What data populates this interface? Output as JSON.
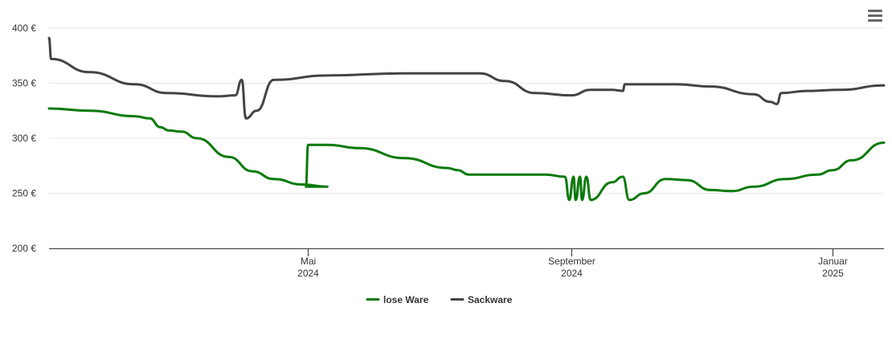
{
  "chart_data": {
    "type": "line",
    "title": "",
    "xlabel": "",
    "ylabel": "",
    "ylim": [
      200,
      400
    ],
    "xlim": [
      "2024-01-01",
      "2025-01-25"
    ],
    "y_ticks": [
      {
        "value": 200,
        "label": "200 €"
      },
      {
        "value": 250,
        "label": "250 €"
      },
      {
        "value": 300,
        "label": "300 €"
      },
      {
        "value": 350,
        "label": "350 €"
      },
      {
        "value": 400,
        "label": "400 €"
      }
    ],
    "x_ticks": [
      {
        "date": "2024-05-01",
        "month": "Mai",
        "year": "2024"
      },
      {
        "date": "2024-09-01",
        "month": "September",
        "year": "2024"
      },
      {
        "date": "2025-01-01",
        "month": "Januar",
        "year": "2025"
      }
    ],
    "grid": true,
    "legend_position": "bottom-center",
    "series": [
      {
        "name": "lose Ware",
        "color": "#0a7a0a",
        "points": [
          [
            "2024-01-01",
            327
          ],
          [
            "2024-01-20",
            325
          ],
          [
            "2024-02-10",
            320
          ],
          [
            "2024-02-17",
            318
          ],
          [
            "2024-02-22",
            310
          ],
          [
            "2024-02-26",
            307
          ],
          [
            "2024-03-03",
            306
          ],
          [
            "2024-03-10",
            300
          ],
          [
            "2024-03-25",
            283
          ],
          [
            "2024-04-05",
            270
          ],
          [
            "2024-04-15",
            263
          ],
          [
            "2024-04-28",
            258
          ],
          [
            "2024-05-10",
            256
          ],
          [
            "2024-04-30",
            256
          ],
          [
            "2024-05-01",
            294
          ],
          [
            "2024-05-10",
            294
          ],
          [
            "2024-05-25",
            291
          ],
          [
            "2024-06-15",
            282
          ],
          [
            "2024-07-05",
            273
          ],
          [
            "2024-07-10",
            271
          ],
          [
            "2024-07-15",
            267
          ],
          [
            "2024-08-01",
            267
          ],
          [
            "2024-08-20",
            267
          ],
          [
            "2024-08-29",
            265
          ],
          [
            "2024-08-31",
            244
          ],
          [
            "2024-09-02",
            265
          ],
          [
            "2024-09-03",
            244
          ],
          [
            "2024-09-05",
            265
          ],
          [
            "2024-09-06",
            244
          ],
          [
            "2024-09-08",
            265
          ],
          [
            "2024-09-10",
            244
          ],
          [
            "2024-09-20",
            260
          ],
          [
            "2024-09-25",
            265
          ],
          [
            "2024-09-28",
            244
          ],
          [
            "2024-10-05",
            250
          ],
          [
            "2024-10-15",
            263
          ],
          [
            "2024-10-25",
            262
          ],
          [
            "2024-11-05",
            253
          ],
          [
            "2024-11-15",
            252
          ],
          [
            "2024-11-25",
            256
          ],
          [
            "2024-12-10",
            263
          ],
          [
            "2024-12-25",
            267
          ],
          [
            "2025-01-01",
            271
          ],
          [
            "2025-01-10",
            280
          ],
          [
            "2025-01-25",
            296
          ]
        ]
      },
      {
        "name": "Sackware",
        "color": "#444444",
        "points": [
          [
            "2024-01-01",
            391
          ],
          [
            "2024-01-02",
            372
          ],
          [
            "2024-01-20",
            360
          ],
          [
            "2024-02-10",
            349
          ],
          [
            "2024-02-25",
            341
          ],
          [
            "2024-03-20",
            338
          ],
          [
            "2024-03-28",
            339
          ],
          [
            "2024-03-31",
            353
          ],
          [
            "2024-04-02",
            318
          ],
          [
            "2024-04-07",
            325
          ],
          [
            "2024-04-15",
            353
          ],
          [
            "2024-05-10",
            357
          ],
          [
            "2024-06-15",
            359
          ],
          [
            "2024-07-20",
            359
          ],
          [
            "2024-08-01",
            352
          ],
          [
            "2024-08-15",
            341
          ],
          [
            "2024-09-01",
            339
          ],
          [
            "2024-09-10",
            344
          ],
          [
            "2024-09-20",
            344
          ],
          [
            "2024-09-25",
            343
          ],
          [
            "2024-09-26",
            349
          ],
          [
            "2024-10-20",
            349
          ],
          [
            "2024-11-05",
            347
          ],
          [
            "2024-11-25",
            340
          ],
          [
            "2024-12-03",
            333
          ],
          [
            "2024-12-06",
            331
          ],
          [
            "2024-12-08",
            341
          ],
          [
            "2024-12-20",
            343
          ],
          [
            "2025-01-05",
            344
          ],
          [
            "2025-01-25",
            348
          ]
        ]
      }
    ]
  },
  "toolbar": {
    "menu_icon": "hamburger-menu-icon"
  }
}
